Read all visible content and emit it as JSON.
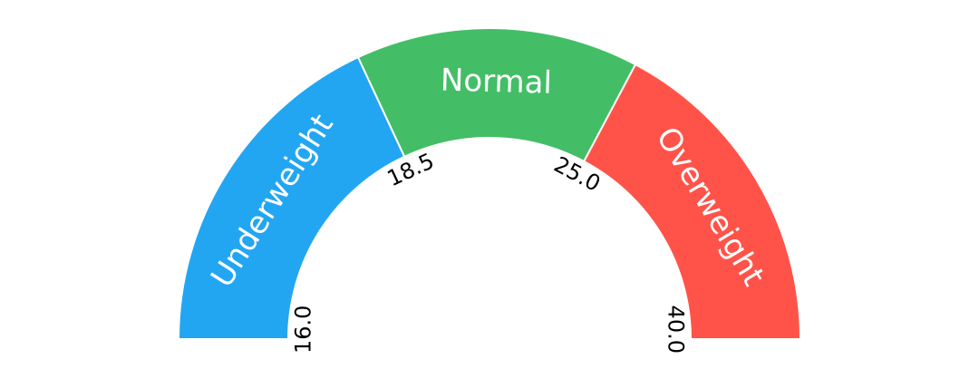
{
  "gauge": {
    "min": 16.0,
    "max": 40.0,
    "segments": [
      {
        "label": "Underweight",
        "from": 16.0,
        "to": 18.5,
        "color": "#23A6F2"
      },
      {
        "label": "Normal",
        "from": 18.5,
        "to": 25.0,
        "color": "#43BE66"
      },
      {
        "label": "Overweight",
        "from": 25.0,
        "to": 40.0,
        "color": "#FF5349"
      }
    ],
    "ticks": [
      "16.0",
      "18.5",
      "25.0",
      "40.0"
    ]
  }
}
